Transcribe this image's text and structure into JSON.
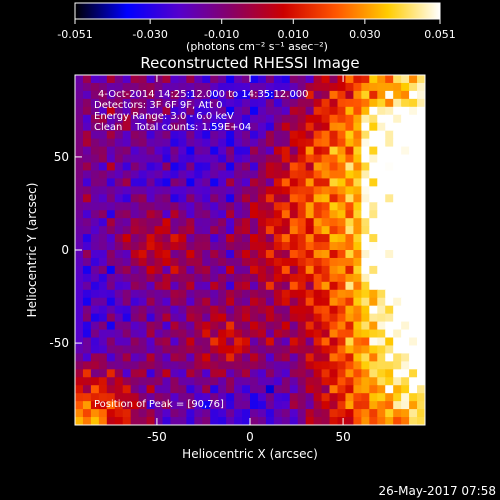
{
  "chart_data": {
    "type": "heatmap",
    "title": "Reconstructed RHESSI Image",
    "xlabel": "Heliocentric X (arcsec)",
    "ylabel": "Heliocentric Y (arcsec)",
    "xlim": [
      -94,
      94
    ],
    "ylim": [
      -94,
      94
    ],
    "x_ticks": [
      -50,
      0,
      50
    ],
    "y_ticks": [
      -50,
      0,
      50
    ],
    "colorbar": {
      "min": -0.051,
      "max": 0.051,
      "ticks": [
        "-0.051",
        "-0.030",
        "-0.010",
        "0.010",
        "0.030",
        "0.051"
      ],
      "units": "(photons cm⁻² s⁻¹ asec⁻²)",
      "colormap": [
        "#000000",
        "#0000ff",
        "#5500cc",
        "#880066",
        "#cc0000",
        "#ff5500",
        "#ffcc00",
        "#ffffff"
      ]
    },
    "annotations": [
      "4-Oct-2014 14:25:12.000 to 14:35:12.000",
      "Detectors: 3F 6F 9F, Att 0",
      "Energy Range: 3.0 - 6.0 keV",
      "Clean    Total counts: 1.59E+04"
    ],
    "peak_label": "Position of Peak = [90,76]",
    "peak_position": [
      90,
      76
    ],
    "date_stamp": "26-May-2017 07:58"
  }
}
